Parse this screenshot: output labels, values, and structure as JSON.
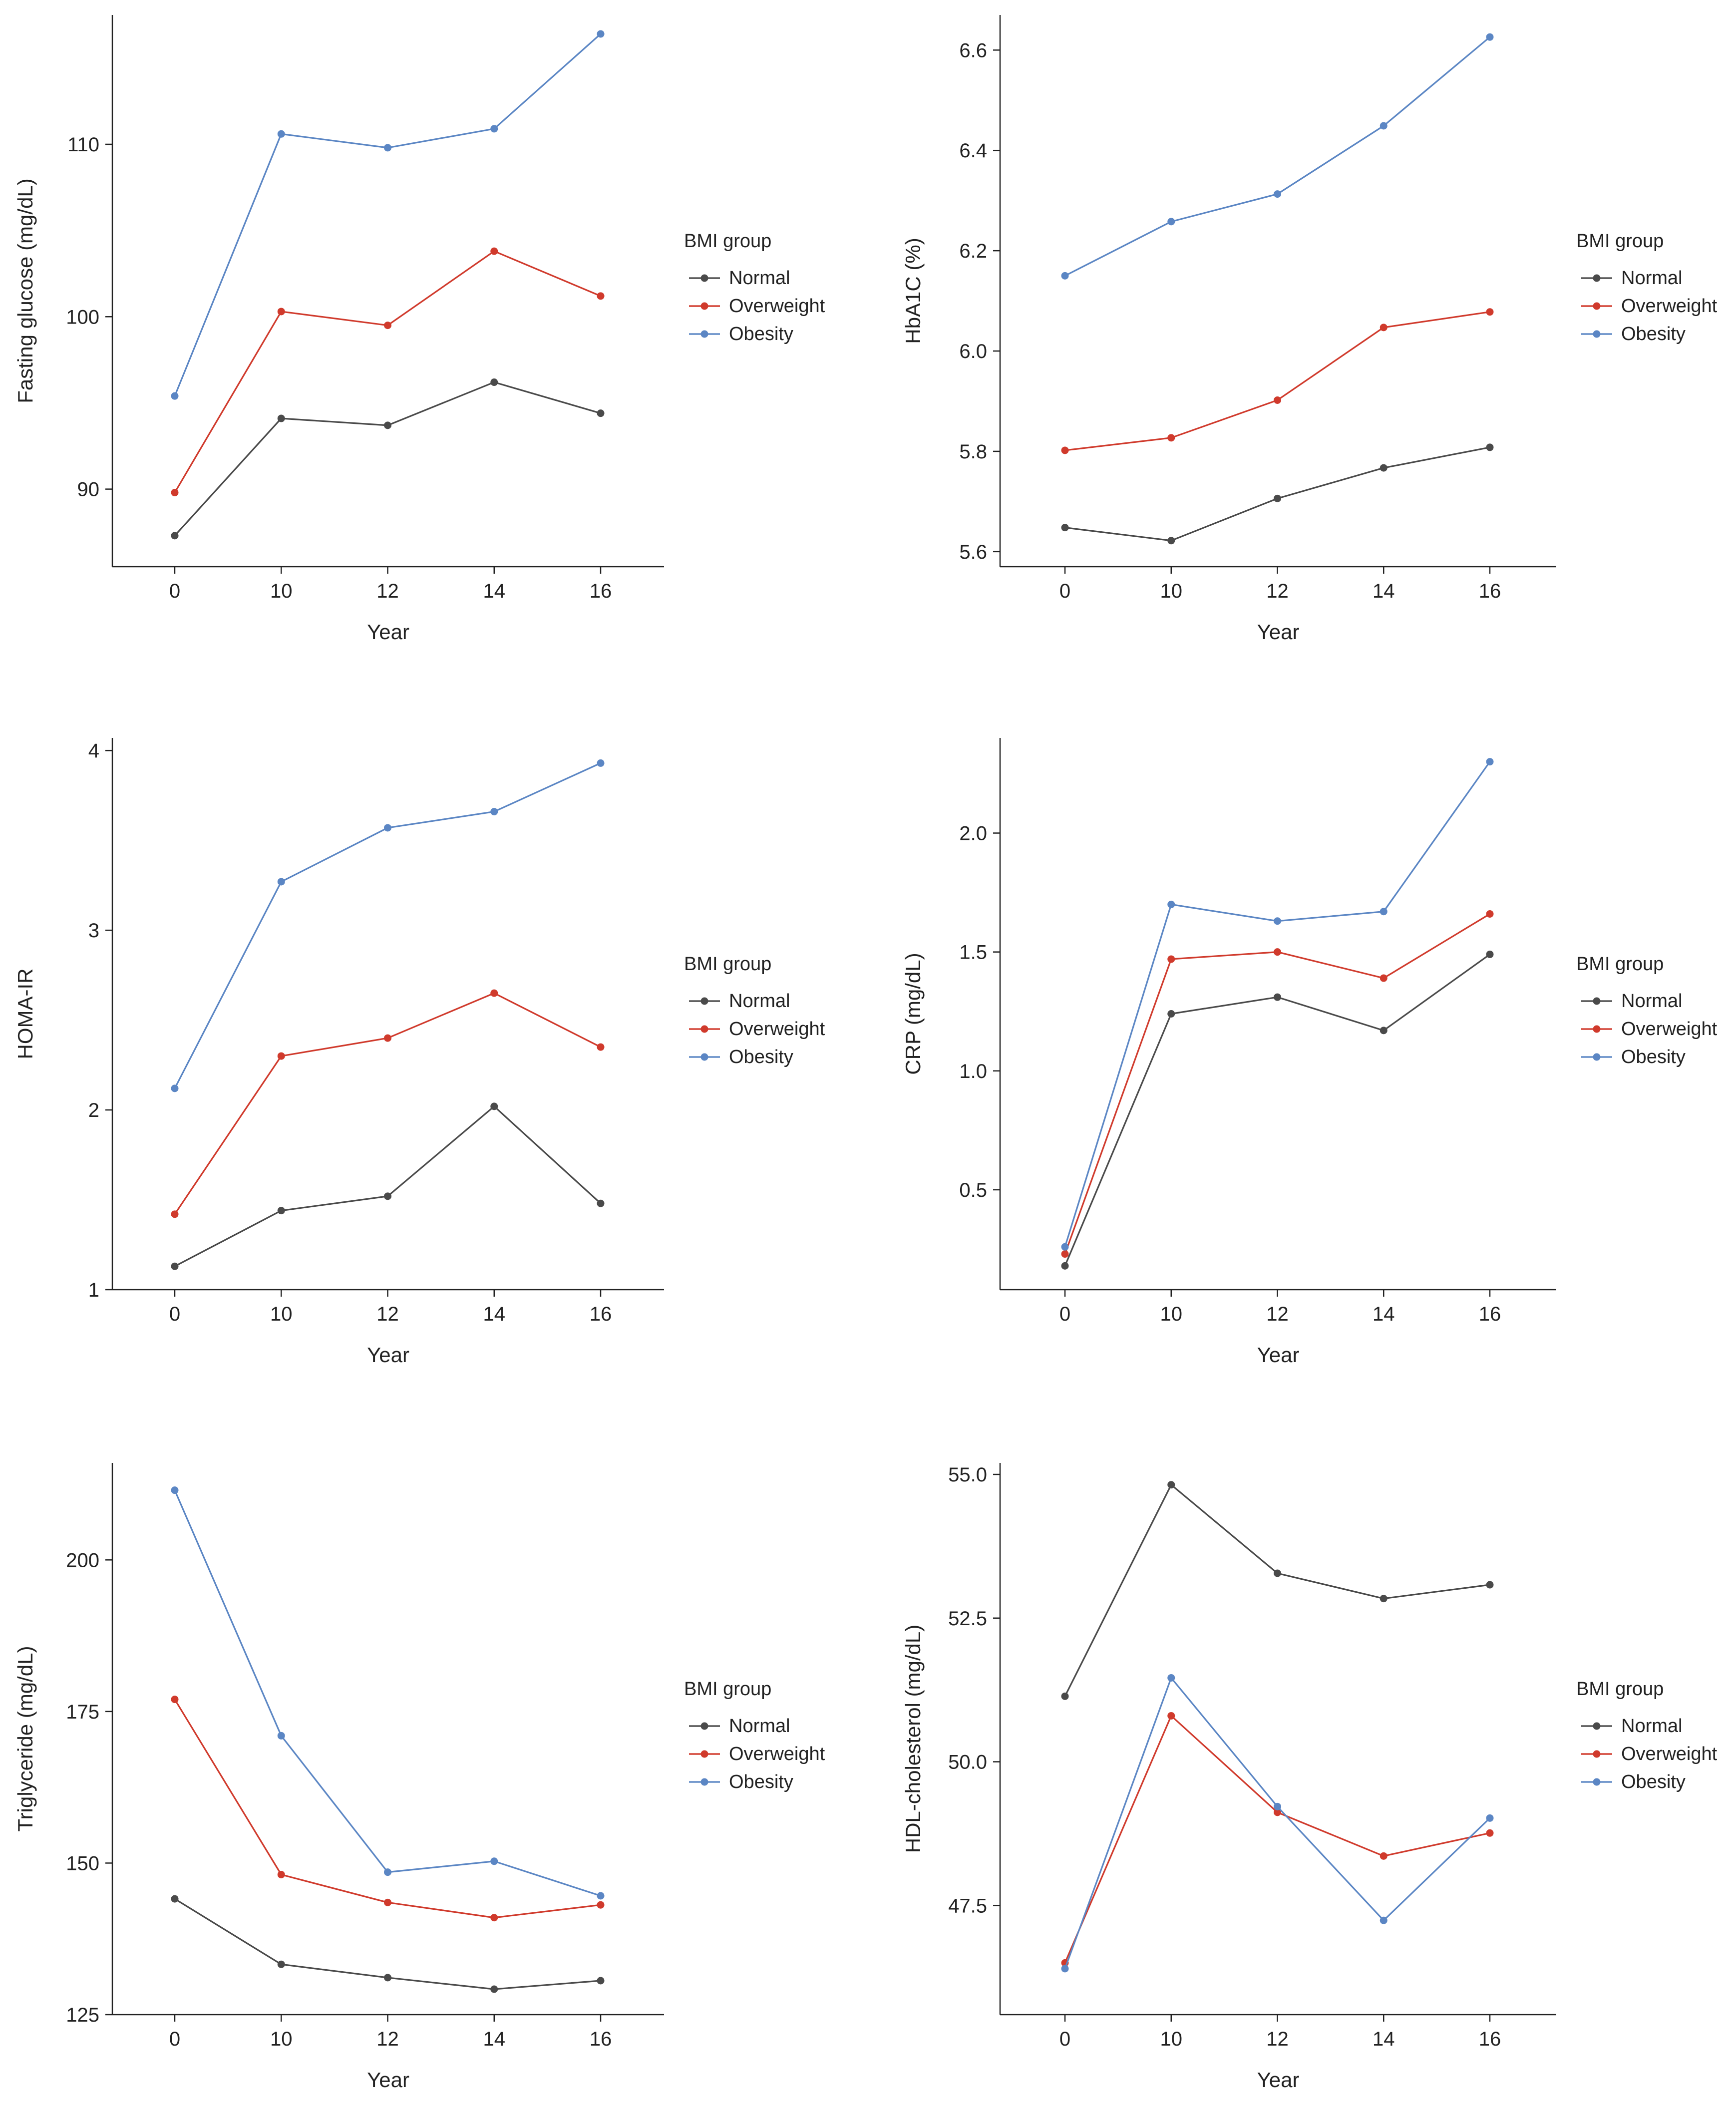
{
  "colors": {
    "Normal": "#4a4a4a",
    "Overweight": "#d03a2c",
    "Obesity": "#5b86c4"
  },
  "chart_data": [
    {
      "type": "line",
      "categories": [
        "0",
        "10",
        "12",
        "14",
        "16"
      ],
      "xlabel": "Year",
      "ylabel": "Fasting glucose (mg/dL)",
      "ylim": [
        85.5,
        117.5
      ],
      "yticks": [
        "90",
        "100",
        "110"
      ],
      "legend_title": "BMI group",
      "series": [
        {
          "name": "Normal",
          "values": [
            87.3,
            94.1,
            93.7,
            96.2,
            94.4
          ]
        },
        {
          "name": "Overweight",
          "values": [
            89.8,
            100.3,
            99.5,
            103.8,
            101.2
          ]
        },
        {
          "name": "Obesity",
          "values": [
            95.4,
            110.6,
            109.8,
            110.9,
            116.4
          ]
        }
      ]
    },
    {
      "type": "line",
      "categories": [
        "0",
        "10",
        "12",
        "14",
        "16"
      ],
      "xlabel": "Year",
      "ylabel": "HbA1C (%)",
      "ylim": [
        5.57,
        6.67
      ],
      "yticks": [
        "5.6",
        "5.8",
        "6.0",
        "6.2",
        "6.4",
        "6.6"
      ],
      "legend_title": "BMI group",
      "series": [
        {
          "name": "Normal",
          "values": [
            5.648,
            5.622,
            5.706,
            5.767,
            5.808
          ]
        },
        {
          "name": "Overweight",
          "values": [
            5.802,
            5.827,
            5.902,
            6.047,
            6.078
          ]
        },
        {
          "name": "Obesity",
          "values": [
            6.15,
            6.258,
            6.313,
            6.449,
            6.626
          ]
        }
      ]
    },
    {
      "type": "line",
      "categories": [
        "0",
        "10",
        "12",
        "14",
        "16"
      ],
      "xlabel": "Year",
      "ylabel": "HOMA-IR",
      "ylim": [
        1.0,
        4.07
      ],
      "yticks": [
        "1",
        "2",
        "3",
        "4"
      ],
      "legend_title": "BMI group",
      "series": [
        {
          "name": "Normal",
          "values": [
            1.13,
            1.44,
            1.52,
            2.02,
            1.48
          ]
        },
        {
          "name": "Overweight",
          "values": [
            1.42,
            2.3,
            2.4,
            2.65,
            2.35
          ]
        },
        {
          "name": "Obesity",
          "values": [
            2.12,
            3.27,
            3.57,
            3.66,
            3.93
          ]
        }
      ]
    },
    {
      "type": "line",
      "categories": [
        "0",
        "10",
        "12",
        "14",
        "16"
      ],
      "xlabel": "Year",
      "ylabel": "CRP (mg/dL)",
      "ylim": [
        0.08,
        2.4
      ],
      "yticks": [
        "0.5",
        "1.0",
        "1.5",
        "2.0"
      ],
      "legend_title": "BMI group",
      "series": [
        {
          "name": "Normal",
          "values": [
            0.18,
            1.24,
            1.31,
            1.17,
            1.49
          ]
        },
        {
          "name": "Overweight",
          "values": [
            0.23,
            1.47,
            1.5,
            1.39,
            1.66
          ]
        },
        {
          "name": "Obesity",
          "values": [
            0.26,
            1.7,
            1.63,
            1.67,
            2.3
          ]
        }
      ]
    },
    {
      "type": "line",
      "categories": [
        "0",
        "10",
        "12",
        "14",
        "16"
      ],
      "xlabel": "Year",
      "ylabel": "Triglyceride (mg/dL)",
      "ylim": [
        125,
        216
      ],
      "yticks": [
        "125",
        "150",
        "175",
        "200"
      ],
      "legend_title": "BMI group",
      "series": [
        {
          "name": "Normal",
          "values": [
            144.1,
            133.3,
            131.1,
            129.2,
            130.6
          ]
        },
        {
          "name": "Overweight",
          "values": [
            177.0,
            148.1,
            143.5,
            141.0,
            143.1
          ]
        },
        {
          "name": "Obesity",
          "values": [
            211.5,
            171.0,
            148.5,
            150.3,
            144.6
          ]
        }
      ]
    },
    {
      "type": "line",
      "categories": [
        "0",
        "10",
        "12",
        "14",
        "16"
      ],
      "xlabel": "Year",
      "ylabel": "HDL-cholesterol (mg/dL)",
      "ylim": [
        45.6,
        55.2
      ],
      "yticks": [
        "47.5",
        "50.0",
        "52.5",
        "55.0"
      ],
      "legend_title": "BMI group",
      "series": [
        {
          "name": "Normal",
          "values": [
            51.14,
            54.82,
            53.28,
            52.84,
            53.08
          ]
        },
        {
          "name": "Overweight",
          "values": [
            46.5,
            50.8,
            49.12,
            48.36,
            48.76
          ]
        },
        {
          "name": "Obesity",
          "values": [
            46.4,
            51.46,
            49.22,
            47.24,
            49.02
          ]
        }
      ]
    }
  ]
}
